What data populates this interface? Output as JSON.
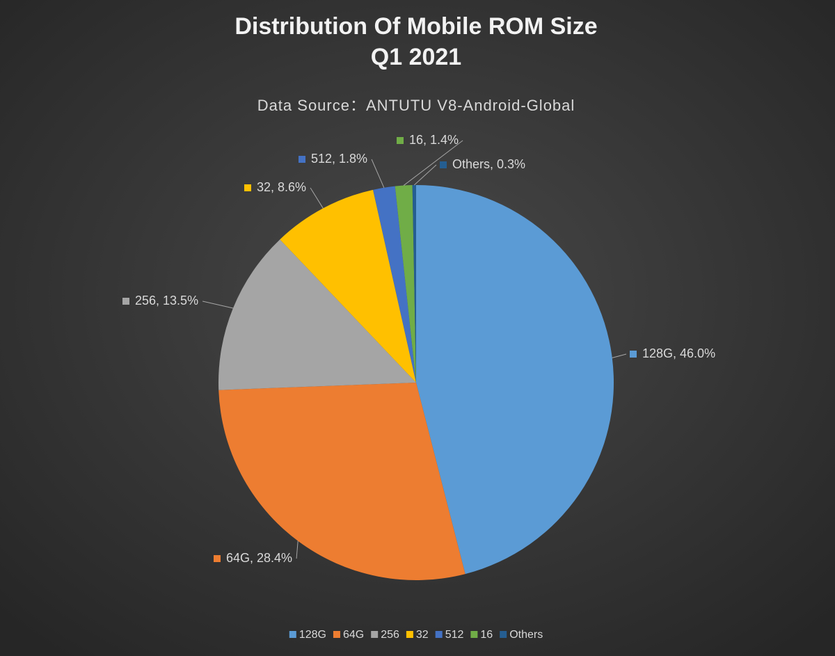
{
  "chart_data": {
    "type": "pie",
    "title": [
      "Distribution Of Mobile ROM Size",
      "Q1 2021"
    ],
    "subtitle": "Data Source：ANTUTU V8-Android-Global",
    "categories": [
      "128G",
      "64G",
      "256",
      "32",
      "512",
      "16",
      "Others"
    ],
    "values": [
      46.0,
      28.4,
      13.5,
      8.6,
      1.8,
      1.4,
      0.3
    ],
    "value_labels": [
      "128G, 46.0%",
      "64G, 28.4%",
      "256, 13.5%",
      "32, 8.6%",
      "512, 1.8%",
      "16, 1.4%",
      "Others, 0.3%"
    ],
    "colors": [
      "#5b9bd5",
      "#ed7d31",
      "#a5a5a5",
      "#ffc000",
      "#4472c4",
      "#70ad47",
      "#255e91"
    ],
    "legend": "bottom"
  }
}
